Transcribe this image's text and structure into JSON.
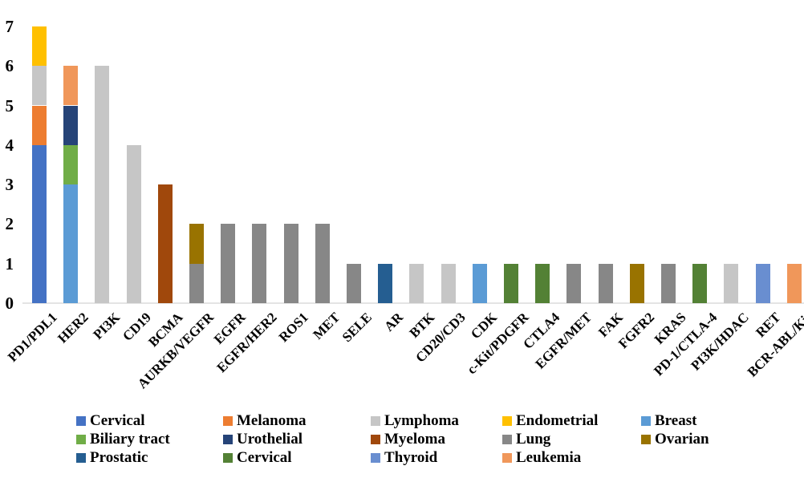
{
  "chart_data": {
    "type": "bar",
    "stacked": true,
    "title": "",
    "xlabel": "",
    "ylabel": "",
    "ylim": [
      0,
      7
    ],
    "yticks": [
      0,
      1,
      2,
      3,
      4,
      5,
      6,
      7
    ],
    "grid": false,
    "legend_position": "bottom",
    "categories": [
      "PD1/PDL1",
      "HER2",
      "PI3K",
      "CD19",
      "BCMA",
      "AURKB/VEGFR",
      "EGFR",
      "EGFR/HER2",
      "ROS1",
      "MET",
      "SELE",
      "AR",
      "BTK",
      "CD20/CD3",
      "CDK",
      "c-Kit/PDGFR",
      "CTLA4",
      "EGFR/MET",
      "FAK",
      "FGFR2",
      "KRAS",
      "PD-1/CTLA-4",
      "PI3K/HDAC",
      "RET",
      "BCR-ABL/Kit"
    ],
    "legend": [
      {
        "key": "cervical",
        "label": "Cervical",
        "color": "#4472C4"
      },
      {
        "key": "melanoma",
        "label": "Melanoma",
        "color": "#ED7D31"
      },
      {
        "key": "lymphoma",
        "label": "Lymphoma",
        "color": "#C6C6C6"
      },
      {
        "key": "endometrial",
        "label": "Endometrial",
        "color": "#FFC000"
      },
      {
        "key": "breast",
        "label": "Breast",
        "color": "#5B9BD5"
      },
      {
        "key": "biliary_tract",
        "label": "Biliary tract",
        "color": "#70AD47"
      },
      {
        "key": "urothelial",
        "label": "Urothelial",
        "color": "#264478"
      },
      {
        "key": "myeloma",
        "label": "Myeloma",
        "color": "#A0480C"
      },
      {
        "key": "lung",
        "label": "Lung",
        "color": "#878787"
      },
      {
        "key": "ovarian",
        "label": "Ovarian",
        "color": "#997300"
      },
      {
        "key": "prostatic",
        "label": "Prostatic",
        "color": "#255E91"
      },
      {
        "key": "cervical_green",
        "label": "Cervical",
        "color": "#538135"
      },
      {
        "key": "thyroid",
        "label": "Thyroid",
        "color": "#698ED0"
      },
      {
        "key": "leukemia",
        "label": "Leukemia",
        "color": "#F0975A"
      }
    ],
    "bars": [
      {
        "category": "PD1/PDL1",
        "total": 7,
        "segments": [
          {
            "series": "cervical",
            "value": 4
          },
          {
            "series": "melanoma",
            "value": 1
          },
          {
            "series": "lymphoma",
            "value": 1
          },
          {
            "series": "endometrial",
            "value": 1
          }
        ]
      },
      {
        "category": "HER2",
        "total": 6,
        "segments": [
          {
            "series": "breast",
            "value": 3
          },
          {
            "series": "biliary_tract",
            "value": 1
          },
          {
            "series": "urothelial",
            "value": 1
          },
          {
            "series": "leukemia",
            "value": 1
          }
        ]
      },
      {
        "category": "PI3K",
        "total": 6,
        "segments": [
          {
            "series": "lymphoma",
            "value": 6
          }
        ]
      },
      {
        "category": "CD19",
        "total": 4,
        "segments": [
          {
            "series": "lymphoma",
            "value": 4
          }
        ]
      },
      {
        "category": "BCMA",
        "total": 3,
        "segments": [
          {
            "series": "myeloma",
            "value": 3
          }
        ]
      },
      {
        "category": "AURKB/VEGFR",
        "total": 2,
        "segments": [
          {
            "series": "lung",
            "value": 1
          },
          {
            "series": "ovarian",
            "value": 1
          }
        ]
      },
      {
        "category": "EGFR",
        "total": 2,
        "segments": [
          {
            "series": "lung",
            "value": 2
          }
        ]
      },
      {
        "category": "EGFR/HER2",
        "total": 2,
        "segments": [
          {
            "series": "lung",
            "value": 2
          }
        ]
      },
      {
        "category": "ROS1",
        "total": 2,
        "segments": [
          {
            "series": "lung",
            "value": 2
          }
        ]
      },
      {
        "category": "MET",
        "total": 2,
        "segments": [
          {
            "series": "lung",
            "value": 2
          }
        ]
      },
      {
        "category": "SELE",
        "total": 1,
        "segments": [
          {
            "series": "lung",
            "value": 1
          }
        ]
      },
      {
        "category": "AR",
        "total": 1,
        "segments": [
          {
            "series": "prostatic",
            "value": 1
          }
        ]
      },
      {
        "category": "BTK",
        "total": 1,
        "segments": [
          {
            "series": "lymphoma",
            "value": 1
          }
        ]
      },
      {
        "category": "CD20/CD3",
        "total": 1,
        "segments": [
          {
            "series": "lymphoma",
            "value": 1
          }
        ]
      },
      {
        "category": "CDK",
        "total": 1,
        "segments": [
          {
            "series": "breast",
            "value": 1
          }
        ]
      },
      {
        "category": "c-Kit/PDGFR",
        "total": 1,
        "segments": [
          {
            "series": "cervical_green",
            "value": 1
          }
        ]
      },
      {
        "category": "CTLA4",
        "total": 1,
        "segments": [
          {
            "series": "cervical_green",
            "value": 1
          }
        ]
      },
      {
        "category": "EGFR/MET",
        "total": 1,
        "segments": [
          {
            "series": "lung",
            "value": 1
          }
        ]
      },
      {
        "category": "FAK",
        "total": 1,
        "segments": [
          {
            "series": "lung",
            "value": 1
          }
        ]
      },
      {
        "category": "FGFR2",
        "total": 1,
        "segments": [
          {
            "series": "ovarian",
            "value": 1
          }
        ]
      },
      {
        "category": "KRAS",
        "total": 1,
        "segments": [
          {
            "series": "lung",
            "value": 1
          }
        ]
      },
      {
        "category": "PD-1/CTLA-4",
        "total": 1,
        "segments": [
          {
            "series": "cervical_green",
            "value": 1
          }
        ]
      },
      {
        "category": "PI3K/HDAC",
        "total": 1,
        "segments": [
          {
            "series": "lymphoma",
            "value": 1
          }
        ]
      },
      {
        "category": "RET",
        "total": 1,
        "segments": [
          {
            "series": "thyroid",
            "value": 1
          }
        ]
      },
      {
        "category": "BCR-ABL/Kit",
        "total": 1,
        "segments": [
          {
            "series": "leukemia",
            "value": 1
          }
        ]
      }
    ]
  }
}
